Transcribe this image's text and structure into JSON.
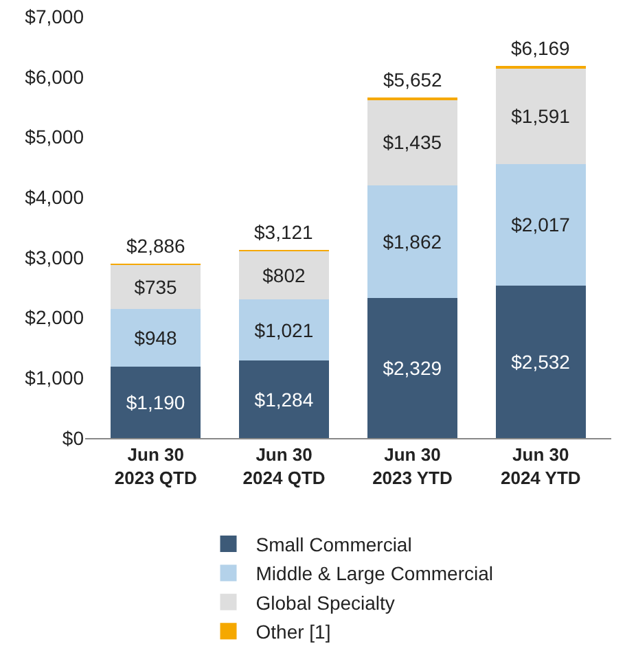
{
  "chart_data": {
    "type": "bar",
    "stacked": true,
    "categories": [
      "Jun 30\n2023 QTD",
      "Jun 30\n2024 QTD",
      "Jun 30\n2023 YTD",
      "Jun 30\n2024 YTD"
    ],
    "series": [
      {
        "name": "Small Commercial",
        "color": "#3d5a78",
        "values": [
          1190,
          1284,
          2329,
          2532
        ],
        "value_labels": [
          "$1,190",
          "$1,284",
          "$2,329",
          "$2,532"
        ]
      },
      {
        "name": "Middle & Large Commercial",
        "color": "#b4d2ea",
        "values": [
          948,
          1021,
          1862,
          2017
        ],
        "value_labels": [
          "$948",
          "$1,021",
          "$1,862",
          "$2,017"
        ]
      },
      {
        "name": "Global Specialty",
        "color": "#dedede",
        "values": [
          735,
          802,
          1435,
          1591
        ],
        "value_labels": [
          "$735",
          "$802",
          "$1,435",
          "$1,591"
        ]
      },
      {
        "name": "Other [1]",
        "color": "#f5a800",
        "values": [
          13,
          14,
          26,
          29
        ],
        "value_labels": [
          null,
          null,
          null,
          null
        ]
      }
    ],
    "totals": [
      "$2,886",
      "$3,121",
      "$5,652",
      "$6,169"
    ],
    "ylim": [
      0,
      7000
    ],
    "yticks": [
      {
        "value": 0,
        "label": "$0"
      },
      {
        "value": 1000,
        "label": "$1,000"
      },
      {
        "value": 2000,
        "label": "$2,000"
      },
      {
        "value": 3000,
        "label": "$3,000"
      },
      {
        "value": 4000,
        "label": "$4,000"
      },
      {
        "value": 5000,
        "label": "$5,000"
      },
      {
        "value": 6000,
        "label": "$6,000"
      },
      {
        "value": 7000,
        "label": "$7,000"
      }
    ],
    "grid": false,
    "legend": "bottom"
  }
}
